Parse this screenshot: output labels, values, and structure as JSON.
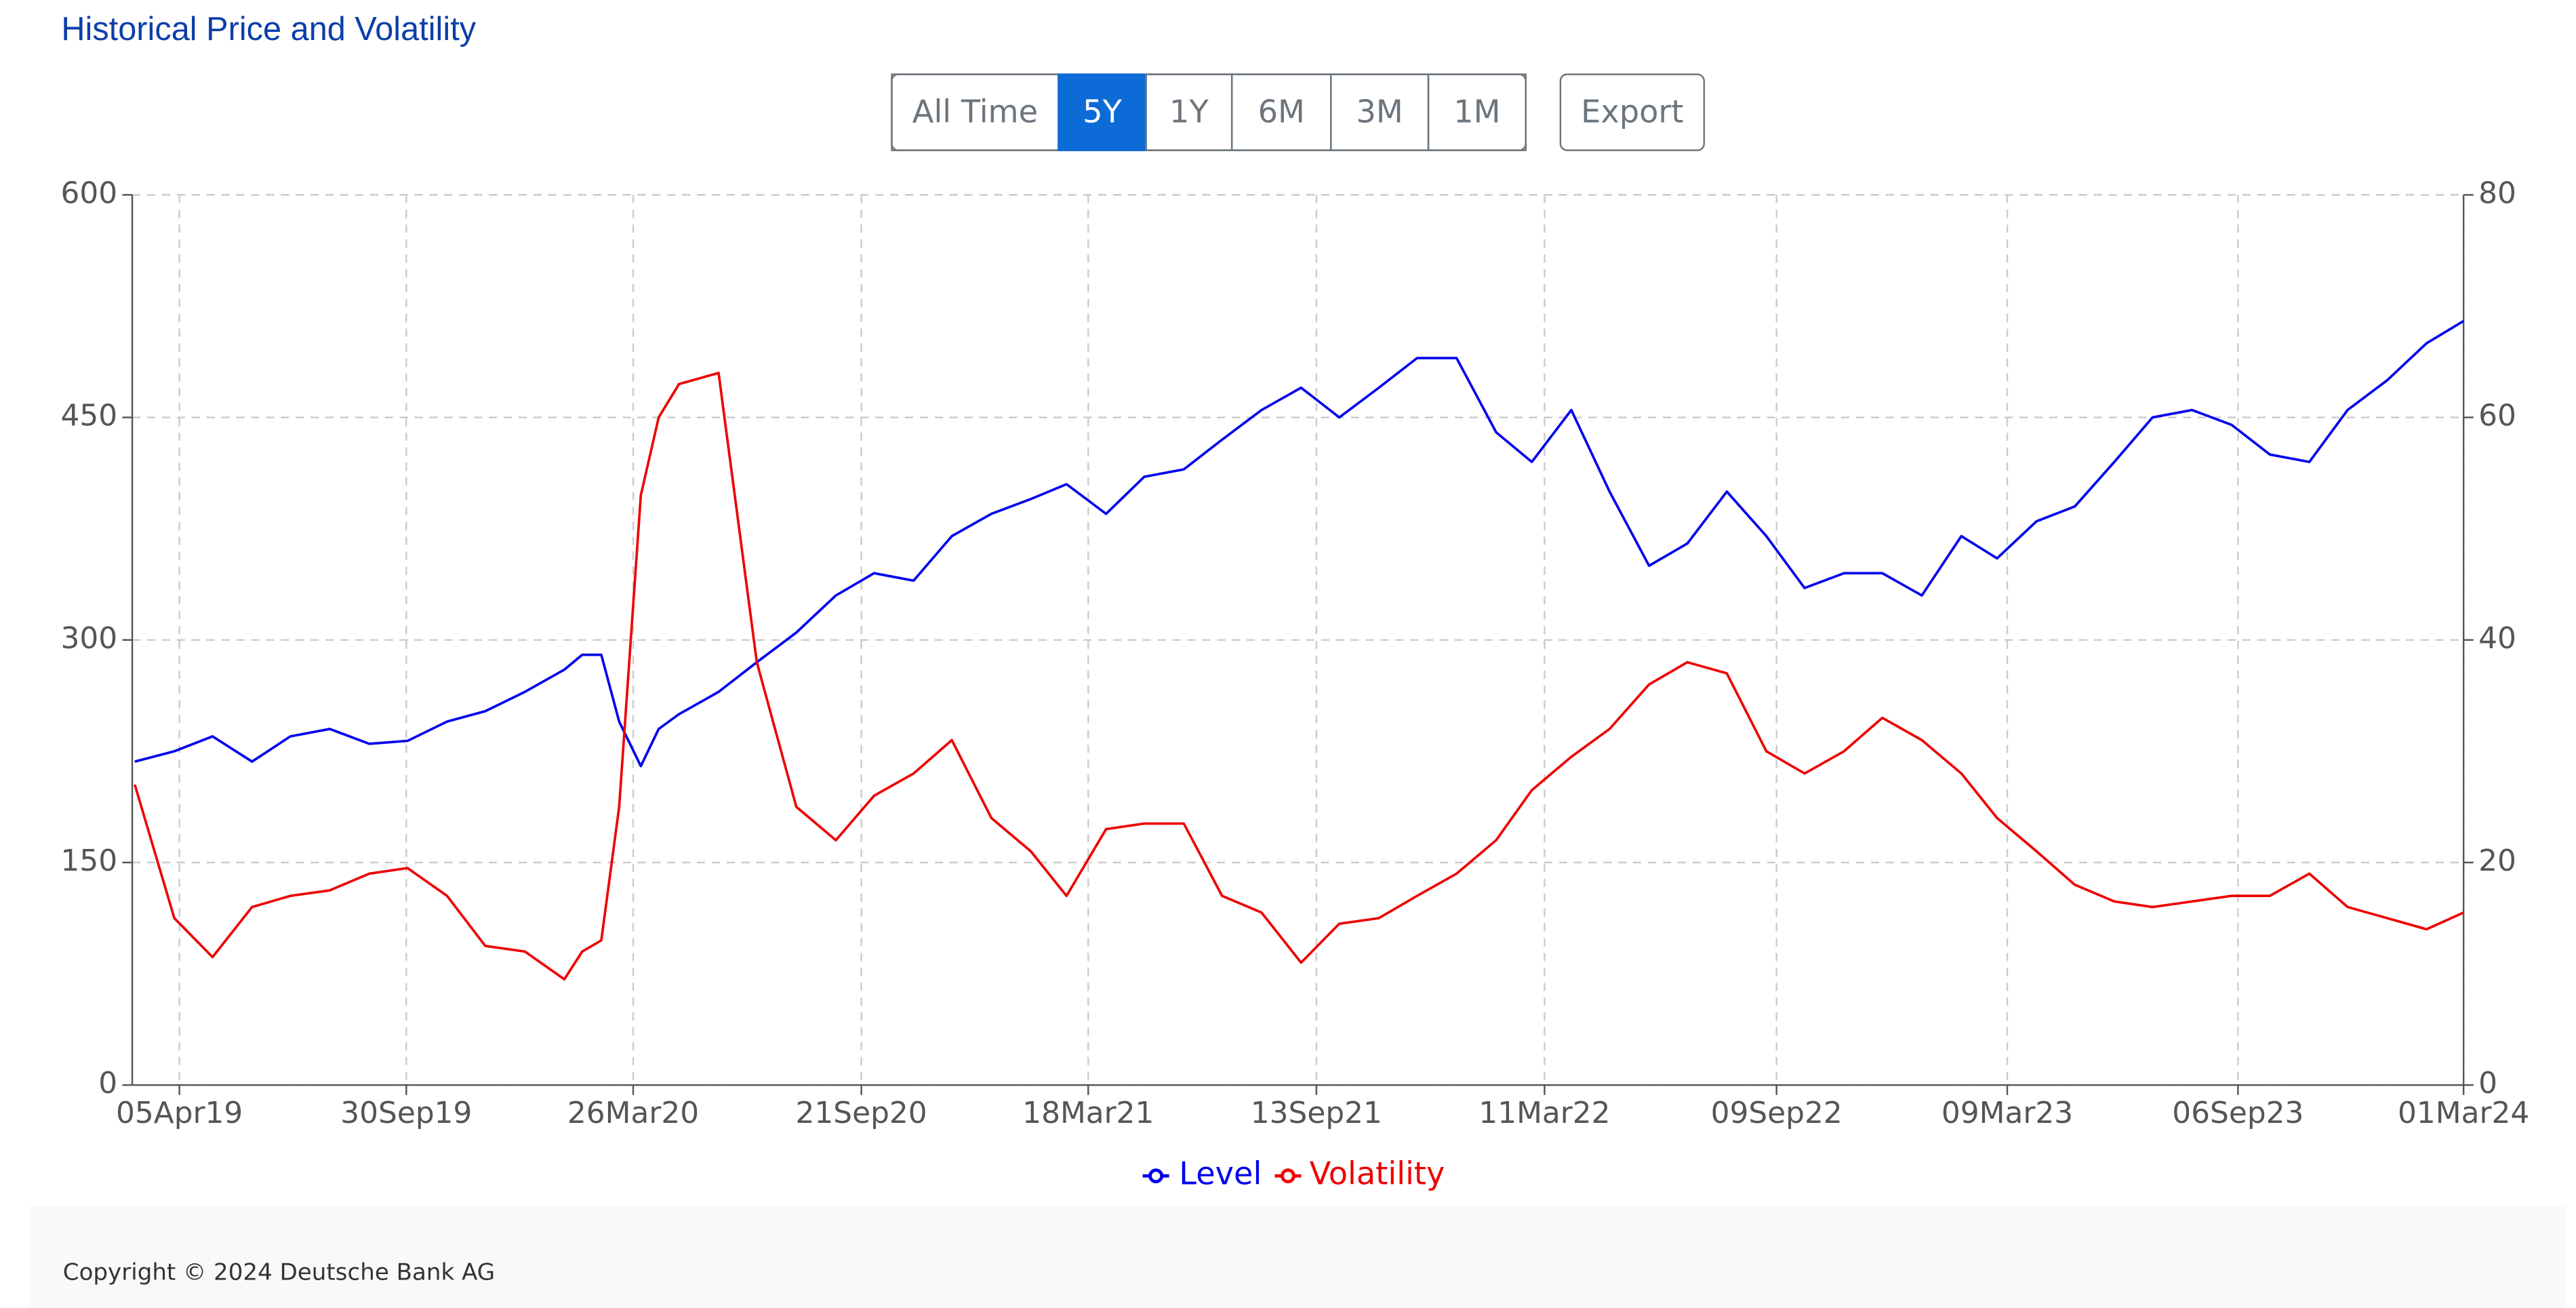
{
  "header": {
    "title": "Historical Price and Volatility"
  },
  "toolbar": {
    "ranges": [
      "All Time",
      "5Y",
      "1Y",
      "6M",
      "3M",
      "1M"
    ],
    "selected": 1,
    "export": "Export"
  },
  "chart_data": {
    "type": "line",
    "x": [
      "2019-03-01",
      "2019-04-01",
      "2019-05-01",
      "2019-06-01",
      "2019-07-01",
      "2019-08-01",
      "2019-09-01",
      "2019-10-01",
      "2019-11-01",
      "2019-12-01",
      "2020-01-01",
      "2020-02-01",
      "2020-02-15",
      "2020-03-01",
      "2020-03-15",
      "2020-04-01",
      "2020-04-15",
      "2020-05-01",
      "2020-06-01",
      "2020-07-01",
      "2020-08-01",
      "2020-09-01",
      "2020-10-01",
      "2020-11-01",
      "2020-12-01",
      "2021-01-01",
      "2021-02-01",
      "2021-03-01",
      "2021-04-01",
      "2021-05-01",
      "2021-06-01",
      "2021-07-01",
      "2021-08-01",
      "2021-09-01",
      "2021-10-01",
      "2021-11-01",
      "2021-12-01",
      "2022-01-01",
      "2022-02-01",
      "2022-03-01",
      "2022-04-01",
      "2022-05-01",
      "2022-06-01",
      "2022-07-01",
      "2022-08-01",
      "2022-09-01",
      "2022-10-01",
      "2022-11-01",
      "2022-12-01",
      "2023-01-01",
      "2023-02-01",
      "2023-03-01",
      "2023-04-01",
      "2023-05-01",
      "2023-06-01",
      "2023-07-01",
      "2023-08-01",
      "2023-09-01",
      "2023-10-01",
      "2023-11-01",
      "2023-12-01",
      "2024-01-01",
      "2024-02-01",
      "2024-03-01"
    ],
    "series": [
      {
        "name": "Level",
        "color": "#0000ee",
        "axis": "y",
        "values": [
          218,
          225,
          235,
          218,
          235,
          240,
          230,
          232,
          245,
          252,
          265,
          280,
          290,
          290,
          245,
          215,
          240,
          250,
          265,
          285,
          305,
          330,
          345,
          340,
          370,
          385,
          395,
          405,
          385,
          410,
          415,
          435,
          455,
          470,
          450,
          470,
          490,
          490,
          440,
          420,
          455,
          400,
          350,
          365,
          400,
          370,
          335,
          345,
          345,
          330,
          370,
          355,
          380,
          390,
          420,
          450,
          455,
          445,
          425,
          420,
          455,
          475,
          500,
          515
        ]
      },
      {
        "name": "Volatility",
        "color": "#ee0000",
        "axis": "y2",
        "values": [
          27,
          15,
          11.5,
          16,
          17,
          17.5,
          19,
          19.5,
          17,
          12.5,
          12,
          9.5,
          12,
          13,
          25,
          53,
          60,
          63,
          64,
          38,
          25,
          22,
          26,
          28,
          31,
          24,
          21,
          17,
          23,
          23.5,
          23.5,
          17,
          15.5,
          11,
          14.5,
          15,
          17,
          19,
          22,
          26.5,
          29.5,
          32,
          36,
          38,
          37,
          30,
          28,
          30,
          33,
          31,
          28,
          24,
          21,
          18,
          16.5,
          16,
          16.5,
          17,
          17,
          19,
          16,
          15,
          14,
          15.5
        ]
      }
    ],
    "xlim": [
      "2019-02-27",
      "2024-03-01"
    ],
    "xticks": [
      {
        "value": "2019-04-05",
        "label": "05Apr19"
      },
      {
        "value": "2019-09-30",
        "label": "30Sep19"
      },
      {
        "value": "2020-03-26",
        "label": "26Mar20"
      },
      {
        "value": "2020-09-21",
        "label": "21Sep20"
      },
      {
        "value": "2021-03-18",
        "label": "18Mar21"
      },
      {
        "value": "2021-09-13",
        "label": "13Sep21"
      },
      {
        "value": "2022-03-11",
        "label": "11Mar22"
      },
      {
        "value": "2022-09-09",
        "label": "09Sep22"
      },
      {
        "value": "2023-03-09",
        "label": "09Mar23"
      },
      {
        "value": "2023-09-06",
        "label": "06Sep23"
      },
      {
        "value": "2024-03-01",
        "label": "01Mar24"
      }
    ],
    "ylim": [
      0,
      600
    ],
    "yticks": [
      0,
      150,
      300,
      450,
      600
    ],
    "y2lim": [
      0,
      80
    ],
    "y2ticks": [
      0,
      20,
      40,
      60,
      80
    ],
    "grid": true,
    "legend": "bottom"
  },
  "footer": {
    "copyright": "Copyright © 2024 Deutsche Bank AG"
  }
}
